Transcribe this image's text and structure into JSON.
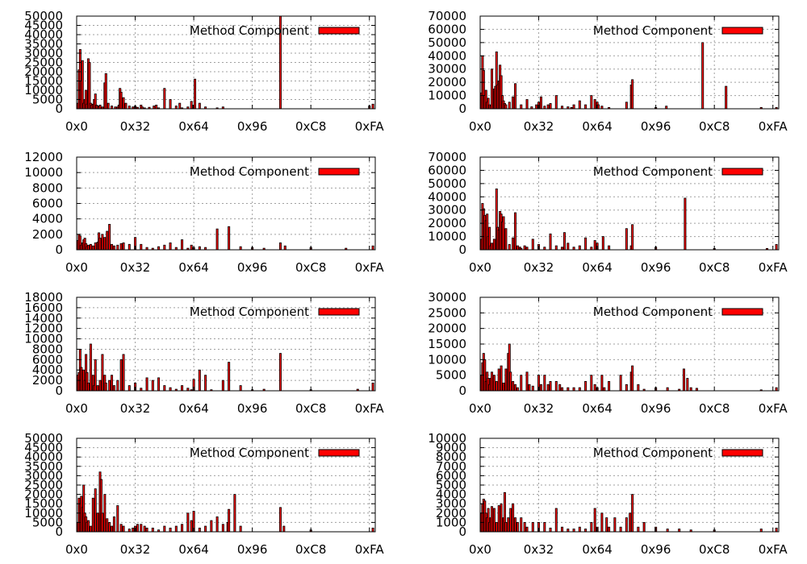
{
  "colors": {
    "bar_fill": "#ff0000",
    "bar_stroke": "#000000",
    "grid": "#a0a0a0"
  },
  "chart_data": [
    {
      "type": "bar",
      "legend": "Method Component",
      "legend_position": "top-right",
      "grid": true,
      "ylim": [
        0,
        50000
      ],
      "yticks": [
        0,
        5000,
        10000,
        15000,
        20000,
        25000,
        30000,
        35000,
        40000,
        45000,
        50000
      ],
      "xlim": [
        0,
        255
      ],
      "xticks": [
        0,
        50,
        100,
        150,
        200,
        250
      ],
      "xtick_labels": [
        "0x0",
        "0x32",
        "0x64",
        "0x96",
        "0xC8",
        "0xFA"
      ],
      "x": [
        1,
        2,
        3,
        4,
        5,
        6,
        7,
        8,
        9,
        10,
        11,
        12,
        13,
        14,
        15,
        16,
        17,
        18,
        19,
        20,
        22,
        24,
        25,
        27,
        30,
        33,
        35,
        36,
        37,
        38,
        40,
        42,
        45,
        48,
        50,
        52,
        55,
        56,
        58,
        62,
        66,
        68,
        70,
        75,
        80,
        85,
        88,
        90,
        95,
        98,
        100,
        101,
        105,
        110,
        120,
        125,
        174,
        250,
        253
      ],
      "values": [
        3000,
        21000,
        32000,
        15000,
        26000,
        3000,
        5000,
        10000,
        2500,
        27000,
        25000,
        3000,
        2000,
        2500,
        5000,
        8000,
        2000,
        1500,
        1000,
        2000,
        1000,
        14000,
        19000,
        3000,
        1500,
        1000,
        1000,
        2000,
        11000,
        9000,
        6000,
        3000,
        1500,
        1000,
        1500,
        800,
        2000,
        1000,
        500,
        800,
        1500,
        2000,
        500,
        11000,
        5000,
        1500,
        3000,
        500,
        1000,
        4000,
        2000,
        16000,
        3000,
        1000,
        500,
        1000,
        50000,
        1500,
        2500
      ]
    },
    {
      "type": "bar",
      "legend": "Method Component",
      "legend_position": "top-right",
      "grid": true,
      "ylim": [
        0,
        70000
      ],
      "yticks": [
        0,
        10000,
        20000,
        30000,
        40000,
        50000,
        60000,
        70000
      ],
      "xlim": [
        0,
        255
      ],
      "xticks": [
        0,
        50,
        100,
        150,
        200,
        250
      ],
      "xtick_labels": [
        "0x0",
        "0x32",
        "0x64",
        "0x96",
        "0xC8",
        "0xFA"
      ],
      "x": [
        1,
        2,
        3,
        4,
        5,
        6,
        7,
        8,
        9,
        10,
        12,
        13,
        14,
        15,
        16,
        17,
        18,
        19,
        20,
        21,
        22,
        25,
        28,
        30,
        35,
        40,
        44,
        48,
        50,
        52,
        55,
        58,
        60,
        65,
        70,
        75,
        78,
        80,
        85,
        90,
        95,
        98,
        100,
        101,
        104,
        110,
        125,
        129,
        130,
        150,
        159,
        190,
        210,
        240,
        253
      ],
      "values": [
        12000,
        40000,
        29000,
        10000,
        14000,
        5000,
        8000,
        3000,
        2000,
        30000,
        15000,
        17000,
        43000,
        18000,
        21000,
        33000,
        25000,
        10000,
        6000,
        4000,
        3000,
        5000,
        9000,
        19000,
        3000,
        7000,
        1500,
        3000,
        5000,
        9000,
        2000,
        3000,
        4000,
        10000,
        2000,
        1500,
        1000,
        3000,
        6000,
        3000,
        10000,
        7000,
        5000,
        3000,
        2000,
        1000,
        5000,
        18000,
        22000,
        1000,
        2000,
        50000,
        17000,
        1000,
        1000
      ]
    },
    {
      "type": "bar",
      "legend": "Method Component",
      "legend_position": "top-right",
      "grid": true,
      "ylim": [
        0,
        12000
      ],
      "yticks": [
        0,
        2000,
        4000,
        6000,
        8000,
        10000,
        12000
      ],
      "xlim": [
        0,
        255
      ],
      "xticks": [
        0,
        50,
        100,
        150,
        200,
        250
      ],
      "xtick_labels": [
        "0x0",
        "0x32",
        "0x64",
        "0x96",
        "0xC8",
        "0xFA"
      ],
      "x": [
        1,
        2,
        3,
        4,
        5,
        6,
        7,
        8,
        9,
        10,
        12,
        14,
        16,
        18,
        19,
        20,
        22,
        24,
        26,
        28,
        30,
        32,
        35,
        38,
        40,
        45,
        50,
        55,
        60,
        65,
        70,
        75,
        80,
        85,
        90,
        95,
        98,
        100,
        105,
        110,
        120,
        130,
        140,
        150,
        160,
        174,
        178,
        200,
        230,
        253
      ],
      "values": [
        1200,
        2000,
        1800,
        600,
        900,
        1300,
        1500,
        800,
        400,
        600,
        700,
        500,
        900,
        1000,
        2200,
        1500,
        2000,
        1600,
        2400,
        3300,
        700,
        500,
        600,
        800,
        900,
        700,
        1600,
        700,
        300,
        200,
        400,
        600,
        900,
        300,
        1300,
        200,
        600,
        300,
        400,
        300,
        2700,
        3000,
        400,
        300,
        200,
        900,
        500,
        300,
        200,
        500
      ]
    },
    {
      "type": "bar",
      "legend": "Method Component",
      "legend_position": "top-right",
      "grid": true,
      "ylim": [
        0,
        70000
      ],
      "yticks": [
        0,
        10000,
        20000,
        30000,
        40000,
        50000,
        60000,
        70000
      ],
      "xlim": [
        0,
        255
      ],
      "xticks": [
        0,
        50,
        100,
        150,
        200,
        250
      ],
      "xtick_labels": [
        "0x0",
        "0x32",
        "0x64",
        "0x96",
        "0xC8",
        "0xFA"
      ],
      "x": [
        1,
        2,
        3,
        4,
        5,
        6,
        7,
        8,
        9,
        10,
        12,
        14,
        15,
        16,
        17,
        18,
        19,
        20,
        22,
        25,
        28,
        30,
        32,
        34,
        35,
        38,
        40,
        45,
        50,
        55,
        60,
        65,
        70,
        72,
        75,
        80,
        85,
        90,
        95,
        98,
        100,
        105,
        110,
        125,
        129,
        130,
        150,
        175,
        200,
        245,
        253
      ],
      "values": [
        8000,
        35000,
        31000,
        26000,
        22000,
        27000,
        10000,
        17000,
        3000,
        5000,
        8000,
        46000,
        17000,
        15000,
        29000,
        27000,
        21000,
        25000,
        16000,
        4000,
        9000,
        28000,
        3000,
        2000,
        1000,
        3000,
        2000,
        8000,
        4000,
        2000,
        12000,
        3000,
        2000,
        13000,
        5000,
        2000,
        3000,
        9000,
        2000,
        7000,
        5000,
        10000,
        3000,
        16000,
        3000,
        19000,
        2000,
        39000,
        1000,
        1000,
        4000
      ]
    },
    {
      "type": "bar",
      "legend": "Method Component",
      "legend_position": "top-right",
      "grid": true,
      "ylim": [
        0,
        18000
      ],
      "yticks": [
        0,
        2000,
        4000,
        6000,
        8000,
        10000,
        12000,
        14000,
        16000,
        18000
      ],
      "xlim": [
        0,
        255
      ],
      "xticks": [
        0,
        50,
        100,
        150,
        200,
        250
      ],
      "xtick_labels": [
        "0x0",
        "0x32",
        "0x64",
        "0x96",
        "0xC8",
        "0xFA"
      ],
      "x": [
        1,
        2,
        3,
        4,
        5,
        6,
        7,
        8,
        9,
        10,
        12,
        14,
        15,
        16,
        18,
        20,
        22,
        24,
        25,
        28,
        30,
        32,
        35,
        38,
        40,
        45,
        50,
        55,
        60,
        65,
        70,
        75,
        80,
        85,
        90,
        95,
        98,
        100,
        105,
        110,
        115,
        125,
        130,
        140,
        150,
        160,
        174,
        200,
        240,
        253
      ],
      "values": [
        3000,
        3500,
        8000,
        4500,
        4000,
        4000,
        2000,
        7000,
        3500,
        1500,
        9000,
        3000,
        1000,
        6000,
        1000,
        2000,
        7000,
        3000,
        1500,
        2000,
        3000,
        1000,
        2000,
        6000,
        7000,
        1000,
        1500,
        500,
        2500,
        2000,
        2500,
        1000,
        600,
        300,
        1000,
        500,
        200,
        2200,
        4000,
        3000,
        200,
        2000,
        5500,
        1000,
        200,
        300,
        7200,
        200,
        300,
        1500
      ]
    },
    {
      "type": "bar",
      "legend": "Method Component",
      "legend_position": "top-right",
      "grid": true,
      "ylim": [
        0,
        30000
      ],
      "yticks": [
        0,
        5000,
        10000,
        15000,
        20000,
        25000,
        30000
      ],
      "xlim": [
        0,
        255
      ],
      "xticks": [
        0,
        50,
        100,
        150,
        200,
        250
      ],
      "xtick_labels": [
        "0x0",
        "0x32",
        "0x64",
        "0x96",
        "0xC8",
        "0xFA"
      ],
      "x": [
        1,
        2,
        3,
        4,
        5,
        6,
        7,
        8,
        9,
        10,
        12,
        14,
        16,
        18,
        20,
        22,
        24,
        25,
        26,
        28,
        30,
        32,
        35,
        40,
        42,
        45,
        50,
        52,
        55,
        58,
        60,
        65,
        68,
        70,
        75,
        80,
        85,
        90,
        95,
        98,
        100,
        104,
        106,
        110,
        120,
        125,
        129,
        130,
        135,
        140,
        150,
        160,
        170,
        174,
        177,
        180,
        185,
        240,
        253
      ],
      "values": [
        5000,
        9000,
        12000,
        10000,
        3000,
        6000,
        4000,
        2000,
        4000,
        6000,
        5000,
        3000,
        7000,
        8000,
        2500,
        7000,
        12000,
        15000,
        6000,
        3000,
        2000,
        1000,
        5000,
        6000,
        2000,
        1500,
        5000,
        2000,
        5000,
        2000,
        3000,
        3000,
        2000,
        1000,
        1000,
        1000,
        1000,
        3000,
        5000,
        2000,
        1000,
        5000,
        1000,
        3000,
        5000,
        2000,
        6000,
        8000,
        2000,
        500,
        1000,
        1000,
        500,
        7000,
        4000,
        1000,
        800,
        300,
        1000
      ]
    },
    {
      "type": "bar",
      "legend": "Method Component",
      "legend_position": "top-right",
      "grid": true,
      "ylim": [
        0,
        50000
      ],
      "yticks": [
        0,
        5000,
        10000,
        15000,
        20000,
        25000,
        30000,
        35000,
        40000,
        45000,
        50000
      ],
      "xlim": [
        0,
        255
      ],
      "xticks": [
        0,
        50,
        100,
        150,
        200,
        250
      ],
      "xtick_labels": [
        "0x0",
        "0x32",
        "0x64",
        "0x96",
        "0xC8",
        "0xFA"
      ],
      "x": [
        1,
        2,
        3,
        4,
        5,
        6,
        7,
        8,
        9,
        10,
        12,
        14,
        16,
        18,
        20,
        21,
        22,
        24,
        26,
        28,
        30,
        32,
        35,
        38,
        40,
        45,
        48,
        50,
        52,
        55,
        58,
        60,
        65,
        70,
        75,
        80,
        85,
        90,
        95,
        98,
        100,
        105,
        110,
        115,
        120,
        125,
        129,
        130,
        135,
        140,
        174,
        177,
        200,
        253
      ],
      "values": [
        5000,
        18000,
        15000,
        19000,
        13000,
        25000,
        10000,
        8000,
        5000,
        6000,
        3000,
        18000,
        23000,
        10000,
        32000,
        28000,
        10000,
        20000,
        7000,
        5000,
        3000,
        8000,
        14000,
        4000,
        3000,
        1500,
        2000,
        3000,
        4000,
        4000,
        3000,
        2000,
        2000,
        1000,
        3000,
        2000,
        3000,
        4000,
        10000,
        6000,
        11000,
        2000,
        3000,
        6000,
        8000,
        4000,
        5000,
        12000,
        20000,
        3000,
        13000,
        3000,
        1000,
        2000
      ]
    },
    {
      "type": "bar",
      "legend": "Method Component",
      "legend_position": "top-right",
      "grid": true,
      "ylim": [
        0,
        10000
      ],
      "yticks": [
        0,
        1000,
        2000,
        3000,
        4000,
        5000,
        6000,
        7000,
        8000,
        9000,
        10000
      ],
      "xlim": [
        0,
        255
      ],
      "xticks": [
        0,
        50,
        100,
        150,
        200,
        250
      ],
      "xtick_labels": [
        "0x0",
        "0x32",
        "0x64",
        "0x96",
        "0xC8",
        "0xFA"
      ],
      "x": [
        1,
        2,
        3,
        4,
        5,
        6,
        7,
        8,
        9,
        10,
        12,
        14,
        16,
        18,
        20,
        21,
        22,
        24,
        26,
        28,
        30,
        32,
        35,
        38,
        40,
        45,
        50,
        55,
        60,
        65,
        70,
        75,
        80,
        85,
        90,
        95,
        98,
        100,
        104,
        108,
        110,
        115,
        120,
        125,
        128,
        130,
        135,
        140,
        150,
        160,
        170,
        180,
        200,
        240,
        253
      ],
      "values": [
        2000,
        3000,
        3500,
        3300,
        2000,
        1500,
        2500,
        1000,
        1500,
        2700,
        2500,
        1000,
        2800,
        3000,
        1500,
        4200,
        1000,
        1500,
        2500,
        3000,
        1500,
        1000,
        1500,
        1000,
        500,
        1000,
        1000,
        1000,
        400,
        2500,
        500,
        300,
        300,
        500,
        300,
        1000,
        2500,
        500,
        2000,
        1500,
        500,
        1500,
        500,
        1500,
        2000,
        4000,
        500,
        1000,
        500,
        300,
        300,
        200,
        200,
        300,
        400
      ]
    }
  ]
}
